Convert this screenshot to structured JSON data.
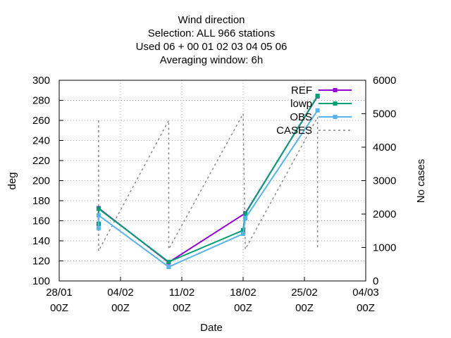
{
  "title_lines": [
    "Wind direction",
    "Selection: ALL    966 stations",
    "Used  06  + 00 01 02 03 04 05 06",
    "Averaging window:  6h"
  ],
  "chart_data": {
    "type": "line",
    "xlabel": "Date",
    "ylabel": "deg",
    "y2label": "No cases",
    "xlim": [
      0,
      35
    ],
    "ylim": [
      100,
      300
    ],
    "y2lim": [
      0,
      6000
    ],
    "x_unit": "days since 28/01 00Z",
    "x_ticks": [
      {
        "x": 0,
        "line1": "28/01",
        "line2": "00Z"
      },
      {
        "x": 7,
        "line1": "04/02",
        "line2": "00Z"
      },
      {
        "x": 14,
        "line1": "11/02",
        "line2": "00Z"
      },
      {
        "x": 21,
        "line1": "18/02",
        "line2": "00Z"
      },
      {
        "x": 28,
        "line1": "25/02",
        "line2": "00Z"
      },
      {
        "x": 35,
        "line1": "04/03",
        "line2": "00Z"
      }
    ],
    "y_ticks": [
      100,
      120,
      140,
      160,
      180,
      200,
      220,
      240,
      260,
      280,
      300
    ],
    "y2_ticks": [
      0,
      1000,
      2000,
      3000,
      4000,
      5000,
      6000
    ],
    "grid": true,
    "legend_position": "top-right",
    "series": [
      {
        "name": "REF",
        "color": "#9400d3",
        "axis": "y",
        "marker": "square",
        "points": [
          [
            4.5,
            157
          ],
          [
            4.5,
            172.5
          ],
          [
            12.5,
            118.5
          ],
          [
            21.25,
            167.5
          ],
          [
            29.5,
            284
          ]
        ]
      },
      {
        "name": "lowp",
        "color": "#009e73",
        "axis": "y",
        "marker": "square",
        "points": [
          [
            4.5,
            157
          ],
          [
            4.5,
            172
          ],
          [
            12.5,
            119
          ],
          [
            21.0,
            150.5
          ],
          [
            21.25,
            167
          ],
          [
            29.5,
            284.5
          ]
        ]
      },
      {
        "name": "OBS",
        "color": "#56b4e9",
        "axis": "y",
        "marker": "square",
        "points": [
          [
            4.5,
            152.5
          ],
          [
            4.5,
            165.5
          ],
          [
            12.5,
            114
          ],
          [
            21.0,
            147
          ],
          [
            21.25,
            162.5
          ],
          [
            29.5,
            270
          ]
        ]
      },
      {
        "name": "CASES",
        "color": "#888888",
        "axis": "y2",
        "dash": true,
        "points": [
          [
            4.5,
            4800
          ],
          [
            4.5,
            900
          ],
          [
            12.5,
            4800
          ],
          [
            12.5,
            950
          ],
          [
            21.0,
            5000
          ],
          [
            21.25,
            950
          ],
          [
            29.5,
            4900
          ],
          [
            29.5,
            950
          ]
        ]
      }
    ]
  }
}
